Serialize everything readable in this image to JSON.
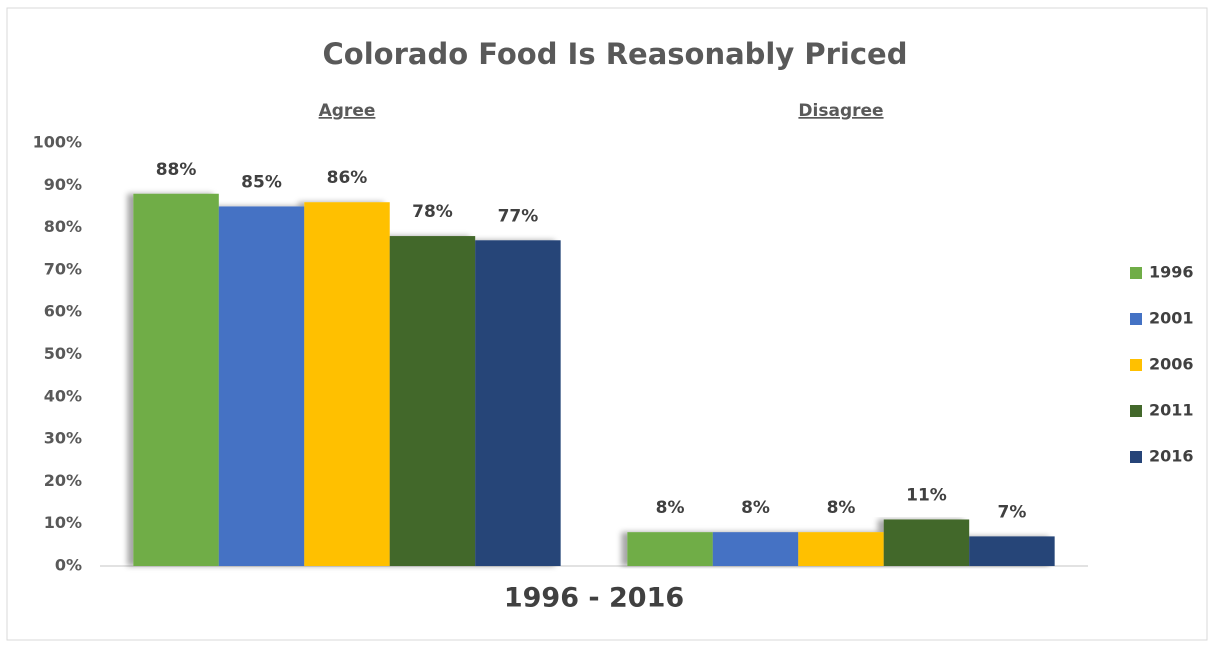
{
  "chart_data": {
    "type": "bar",
    "title": "Colorado Food Is Reasonably Priced",
    "x_label": "1996 - 2016",
    "categories": [
      "Agree",
      "Disagree"
    ],
    "series": [
      {
        "name": "1996",
        "color": "#70ad47",
        "values": [
          88,
          8
        ],
        "value_labels": [
          "88%",
          "8%"
        ]
      },
      {
        "name": "2001",
        "color": "#4472c4",
        "values": [
          85,
          8
        ],
        "value_labels": [
          "85%",
          "8%"
        ]
      },
      {
        "name": "2006",
        "color": "#ffc000",
        "values": [
          86,
          8
        ],
        "value_labels": [
          "86%",
          "8%"
        ]
      },
      {
        "name": "2011",
        "color": "#43682b",
        "values": [
          78,
          11
        ],
        "value_labels": [
          "78%",
          "11%"
        ]
      },
      {
        "name": "2016",
        "color": "#264478",
        "values": [
          77,
          7
        ],
        "value_labels": [
          "77%",
          "7%"
        ]
      }
    ],
    "ylim": [
      0,
      100
    ],
    "yticks": [
      {
        "value": 0,
        "label": "0%"
      },
      {
        "value": 10,
        "label": "10%"
      },
      {
        "value": 20,
        "label": "20%"
      },
      {
        "value": 30,
        "label": "30%"
      },
      {
        "value": 40,
        "label": "40%"
      },
      {
        "value": 50,
        "label": "50%"
      },
      {
        "value": 60,
        "label": "60%"
      },
      {
        "value": 70,
        "label": "70%"
      },
      {
        "value": 80,
        "label": "80%"
      },
      {
        "value": 90,
        "label": "90%"
      },
      {
        "value": 100,
        "label": "100%"
      }
    ],
    "legend": "right"
  }
}
